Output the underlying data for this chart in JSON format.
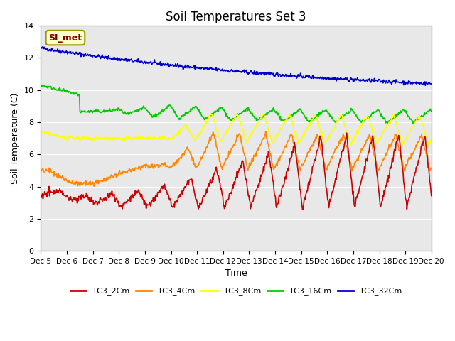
{
  "title": "Soil Temperatures Set 3",
  "xlabel": "Time",
  "ylabel": "Soil Temperature (C)",
  "ylim": [
    0,
    14
  ],
  "xlim": [
    0,
    15
  ],
  "background_color": "#e8e8e8",
  "series_colors": {
    "TC3_2Cm": "#cc0000",
    "TC3_4Cm": "#ff8800",
    "TC3_8Cm": "#ffff00",
    "TC3_16Cm": "#00cc00",
    "TC3_32Cm": "#0000cc"
  },
  "x_tick_labels": [
    "Dec 5",
    "Dec 6",
    "Dec 7",
    "Dec 8",
    "Dec 9",
    "Dec 10",
    "Dec 11",
    "Dec 12",
    "Dec 13",
    "Dec 14",
    "Dec 15",
    "Dec 16",
    "Dec 17",
    "Dec 18",
    "Dec 19",
    "Dec 20"
  ],
  "annotation_text": "SI_met",
  "annotation_color": "#800000",
  "annotation_bg": "#ffffcc",
  "annotation_border": "#999900"
}
